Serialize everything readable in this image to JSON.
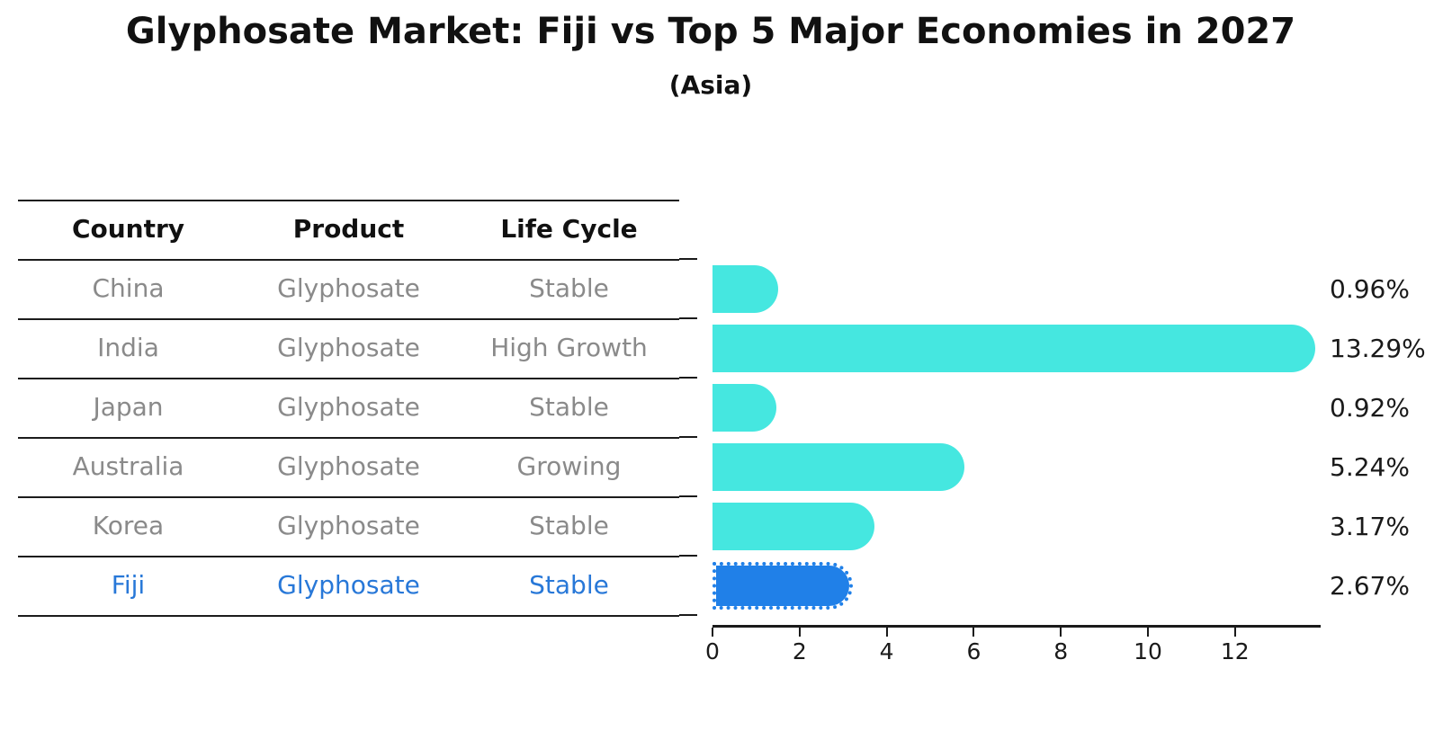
{
  "title": "Glyphosate Market: Fiji vs Top 5 Major Economies in 2027",
  "subtitle": "(Asia)",
  "table": {
    "headers": [
      "Country",
      "Product",
      "Life Cycle"
    ],
    "rows": [
      {
        "country": "China",
        "product": "Glyphosate",
        "life_cycle": "Stable",
        "highlight": false
      },
      {
        "country": "India",
        "product": "Glyphosate",
        "life_cycle": "High Growth",
        "highlight": false
      },
      {
        "country": "Japan",
        "product": "Glyphosate",
        "life_cycle": "Stable",
        "highlight": false
      },
      {
        "country": "Australia",
        "product": "Glyphosate",
        "life_cycle": "Growing",
        "highlight": false
      },
      {
        "country": "Korea",
        "product": "Glyphosate",
        "life_cycle": "Stable",
        "highlight": false
      },
      {
        "country": "Fiji",
        "product": "Glyphosate",
        "life_cycle": "Stable",
        "highlight": true
      }
    ]
  },
  "chart_data": {
    "type": "bar",
    "orientation": "horizontal",
    "title": "Glyphosate Market: Fiji vs Top 5 Major Economies in 2027",
    "subtitle": "(Asia)",
    "categories": [
      "China",
      "India",
      "Japan",
      "Australia",
      "Korea",
      "Fiji"
    ],
    "values": [
      0.96,
      13.29,
      0.92,
      5.24,
      3.17,
      2.67
    ],
    "value_labels": [
      "0.96%",
      "13.29%",
      "0.92%",
      "5.24%",
      "3.17%",
      "2.67%"
    ],
    "x_ticks": [
      0,
      2,
      4,
      6,
      8,
      10,
      12
    ],
    "xlim": [
      0,
      13.97
    ],
    "grid": false,
    "legend": false,
    "bar_color": "#45e7e0",
    "highlight_color": "#2080e8",
    "highlight_index": 5,
    "highlight_text_color": "#2878d8"
  }
}
